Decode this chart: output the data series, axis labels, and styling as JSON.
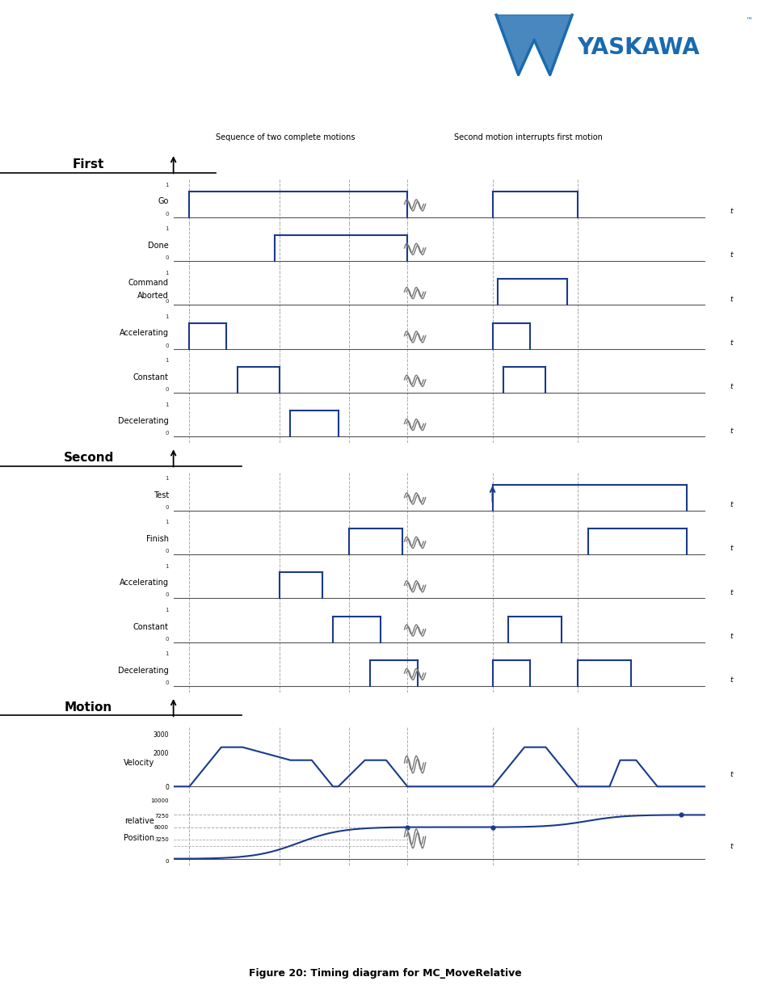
{
  "title": "Figure 20: Timing diagram for MC_MoveRelative",
  "signal_color": "#1a3a8c",
  "axis_color": "#555555",
  "dashed_color": "#aaaaaa",
  "bg_color": "#ffffff",
  "top_label_left": "Sequence of two complete motions",
  "top_label_right": "Second motion interrupts first motion",
  "vel_ticks": [
    "3000",
    "2000",
    "0"
  ],
  "pos_ticks": [
    "10000",
    "7250",
    "6000",
    "3250",
    "0"
  ],
  "section_names": [
    "First",
    "Second",
    "Motion"
  ],
  "caption": "Figure 20: Timing diagram for MC_MoveRelative"
}
